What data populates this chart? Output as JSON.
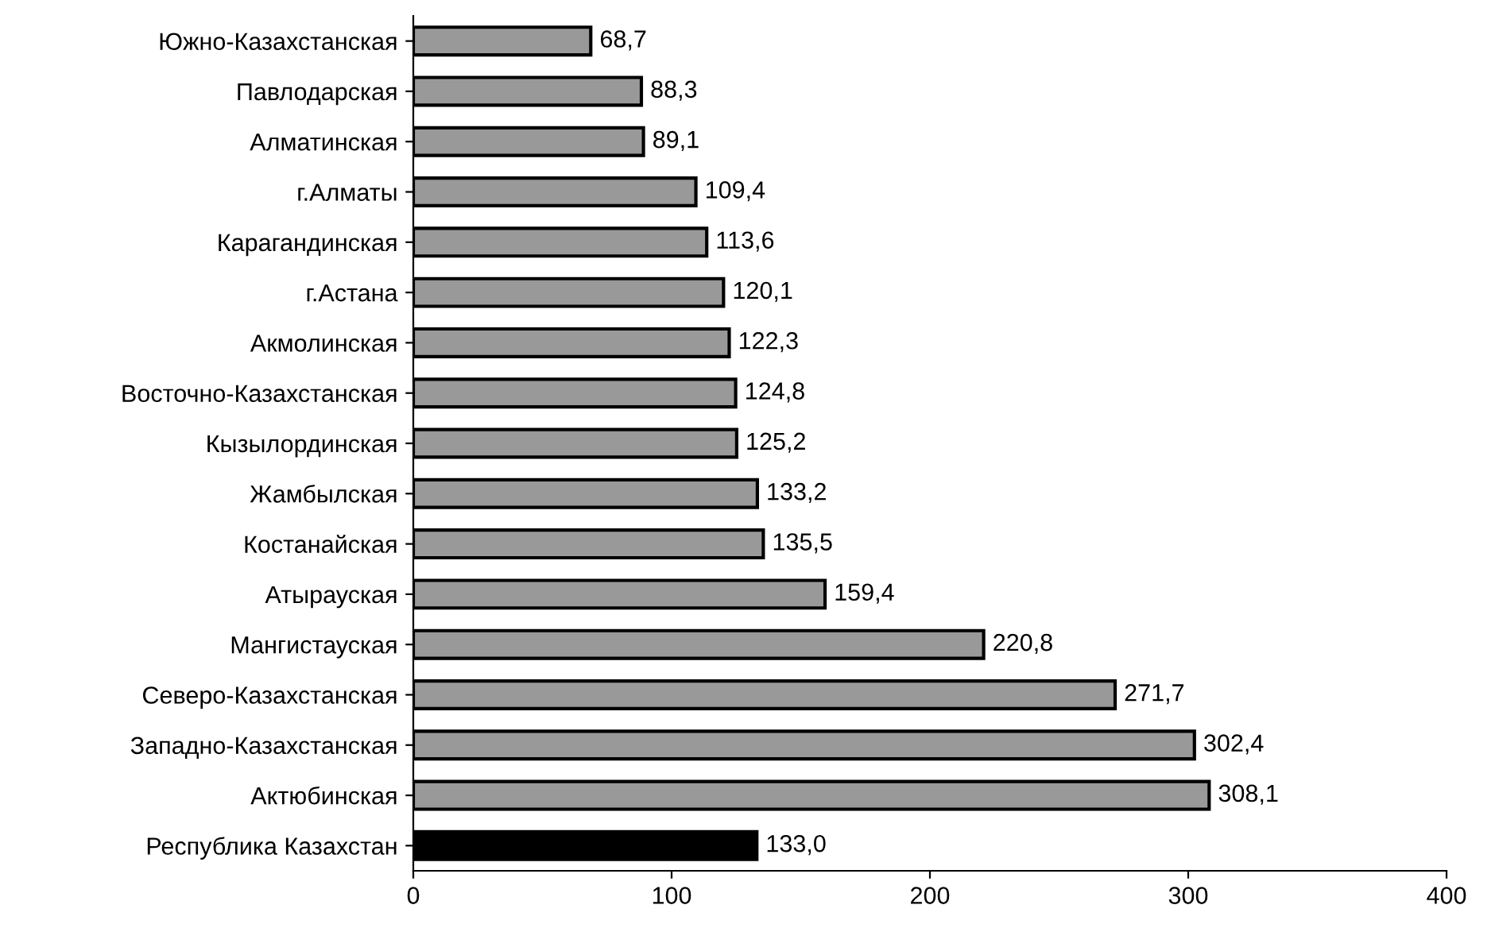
{
  "chart_data": {
    "type": "bar",
    "orientation": "horizontal",
    "categories": [
      "Южно-Казахстанская",
      "Павлодарская",
      "Алматинская",
      "г.Алматы",
      "Карагандинская",
      "г.Астана",
      "Акмолинская",
      "Восточно-Казахстанская",
      "Кызылординская",
      "Жамбылская",
      "Костанайская",
      "Атырауская",
      "Мангистауская",
      "Северо-Казахстанская",
      "Западно-Казахстанская",
      "Актюбинская",
      "Республика Казахстан"
    ],
    "values": [
      68.7,
      88.3,
      89.1,
      109.4,
      113.6,
      120.1,
      122.3,
      124.8,
      125.2,
      133.2,
      135.5,
      159.4,
      220.8,
      271.7,
      302.4,
      308.1,
      133.0
    ],
    "value_labels": [
      "68,7",
      "88,3",
      "89,1",
      "109,4",
      "113,6",
      "120,1",
      "122,3",
      "124,8",
      "125,2",
      "133,2",
      "135,5",
      "159,4",
      "220,8",
      "271,7",
      "302,4",
      "308,1",
      "133,0"
    ],
    "colors": [
      "#999999",
      "#999999",
      "#999999",
      "#999999",
      "#999999",
      "#999999",
      "#999999",
      "#999999",
      "#999999",
      "#999999",
      "#999999",
      "#999999",
      "#999999",
      "#999999",
      "#999999",
      "#999999",
      "#000000"
    ],
    "xlim": [
      0,
      400
    ],
    "xticks": [
      0,
      100,
      200,
      300,
      400
    ],
    "grid": false,
    "legend": false
  }
}
